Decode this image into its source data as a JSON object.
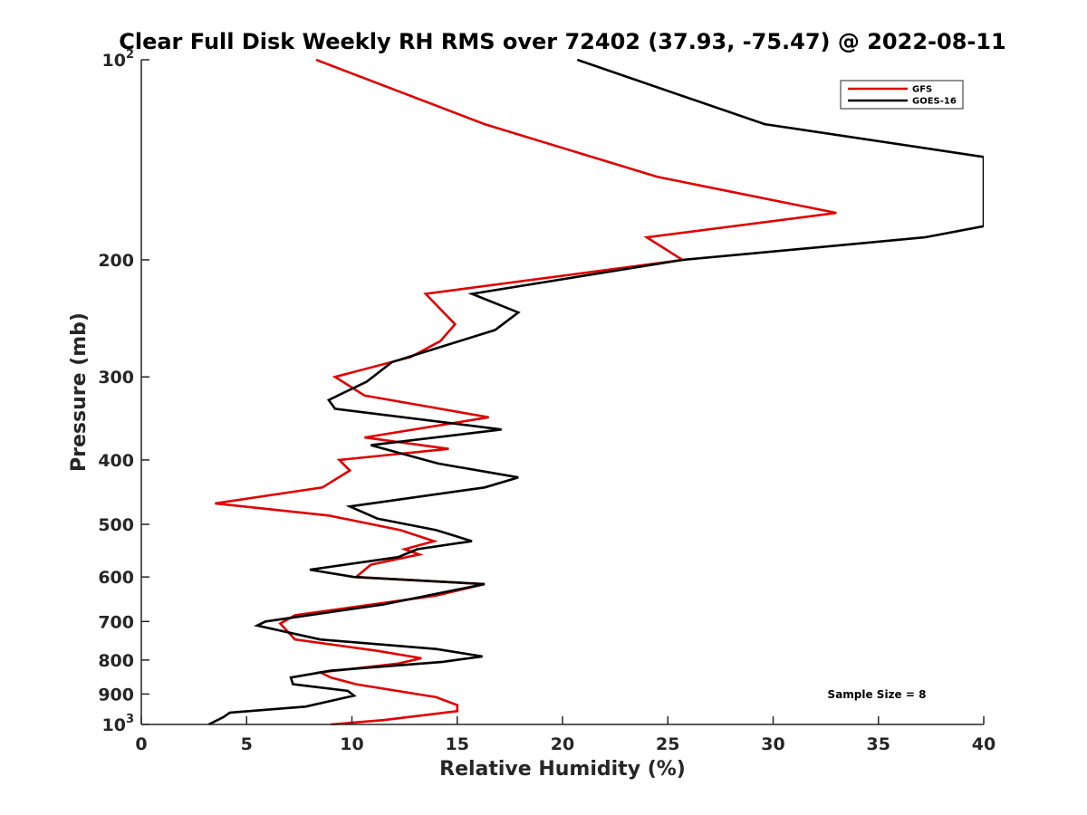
{
  "chart_data": {
    "type": "line",
    "title": "Clear Full Disk Weekly RH RMS over 72402 (37.93, -75.47) @ 2022-08-11",
    "xlabel": "Relative Humidity (%)",
    "ylabel": "Pressure (mb)",
    "xlim": [
      0,
      40
    ],
    "ylim": [
      100,
      1000
    ],
    "yscale": "log",
    "yreversed": true,
    "x_ticks": [
      0,
      5,
      10,
      15,
      20,
      25,
      30,
      35,
      40
    ],
    "x_tick_labels": [
      "0",
      "5",
      "10",
      "15",
      "20",
      "25",
      "30",
      "35",
      "40"
    ],
    "y_ticks": [
      100,
      200,
      300,
      400,
      500,
      600,
      700,
      800,
      900,
      1000
    ],
    "y_tick_labels": [
      {
        "base": "10",
        "exp": "2"
      },
      {
        "text": "200"
      },
      {
        "text": "300"
      },
      {
        "text": "400"
      },
      {
        "text": "500"
      },
      {
        "text": "600"
      },
      {
        "text": "700"
      },
      {
        "text": "800"
      },
      {
        "text": "900"
      },
      {
        "base": "10",
        "exp": "3"
      }
    ],
    "grid": false,
    "legend_position": "top-right",
    "annotation": "Sample Size = 8",
    "series": [
      {
        "name": "GFS",
        "color": "#e00000",
        "points": [
          [
            8.3,
            100
          ],
          [
            16.3,
            125
          ],
          [
            24.5,
            150
          ],
          [
            33.0,
            170
          ],
          [
            24.0,
            185
          ],
          [
            25.7,
            200
          ],
          [
            13.5,
            225
          ],
          [
            14.9,
            250
          ],
          [
            14.2,
            265
          ],
          [
            12.8,
            280
          ],
          [
            9.2,
            300
          ],
          [
            10.6,
            320
          ],
          [
            16.5,
            345
          ],
          [
            10.6,
            370
          ],
          [
            14.6,
            385
          ],
          [
            9.4,
            400
          ],
          [
            9.9,
            415
          ],
          [
            8.6,
            440
          ],
          [
            3.5,
            465
          ],
          [
            8.9,
            485
          ],
          [
            12.3,
            510
          ],
          [
            13.9,
            530
          ],
          [
            12.5,
            545
          ],
          [
            13.2,
            555
          ],
          [
            10.9,
            575
          ],
          [
            10.2,
            600
          ],
          [
            16.3,
            615
          ],
          [
            14.0,
            640
          ],
          [
            7.3,
            685
          ],
          [
            6.6,
            705
          ],
          [
            7.3,
            745
          ],
          [
            11.2,
            775
          ],
          [
            13.3,
            795
          ],
          [
            12.2,
            810
          ],
          [
            8.5,
            835
          ],
          [
            9.0,
            850
          ],
          [
            10.2,
            870
          ],
          [
            14.0,
            910
          ],
          [
            15.0,
            935
          ],
          [
            15.0,
            955
          ],
          [
            11.5,
            985
          ],
          [
            9.0,
            1000
          ]
        ]
      },
      {
        "name": "GOES-16",
        "color": "#000000",
        "points": [
          [
            20.7,
            100
          ],
          [
            29.6,
            125
          ],
          [
            40.0,
            140
          ],
          [
            40.0,
            178
          ],
          [
            37.2,
            185
          ],
          [
            25.7,
            200
          ],
          [
            15.7,
            225
          ],
          [
            17.9,
            240
          ],
          [
            16.8,
            255
          ],
          [
            11.9,
            285
          ],
          [
            10.7,
            305
          ],
          [
            8.9,
            325
          ],
          [
            9.2,
            335
          ],
          [
            17.1,
            360
          ],
          [
            10.9,
            380
          ],
          [
            14.1,
            405
          ],
          [
            17.9,
            425
          ],
          [
            16.3,
            440
          ],
          [
            9.9,
            470
          ],
          [
            11.2,
            490
          ],
          [
            14.0,
            510
          ],
          [
            15.7,
            530
          ],
          [
            13.1,
            545
          ],
          [
            12.2,
            560
          ],
          [
            8.0,
            585
          ],
          [
            10.1,
            600
          ],
          [
            16.3,
            615
          ],
          [
            11.5,
            660
          ],
          [
            5.9,
            700
          ],
          [
            5.5,
            710
          ],
          [
            8.5,
            745
          ],
          [
            14.0,
            770
          ],
          [
            16.2,
            790
          ],
          [
            14.3,
            805
          ],
          [
            9.0,
            830
          ],
          [
            7.1,
            850
          ],
          [
            7.2,
            870
          ],
          [
            9.8,
            890
          ],
          [
            10.1,
            905
          ],
          [
            7.8,
            940
          ],
          [
            4.2,
            960
          ],
          [
            3.9,
            975
          ],
          [
            3.2,
            1000
          ]
        ]
      }
    ]
  }
}
